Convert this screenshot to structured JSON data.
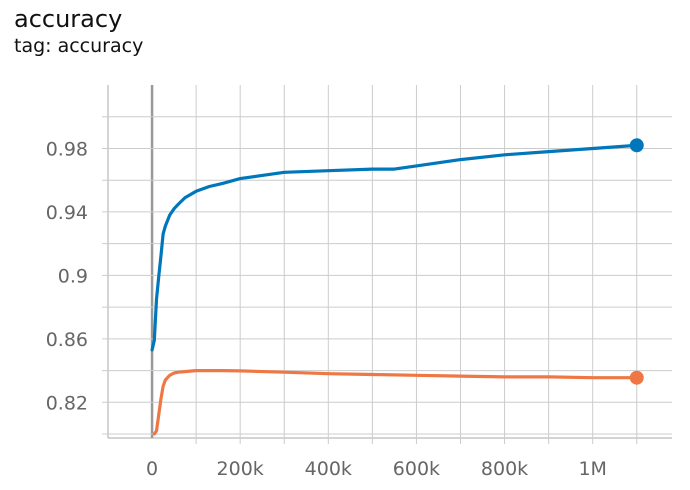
{
  "card": {
    "title": "accuracy",
    "tag": "tag: accuracy"
  },
  "chart_data": {
    "type": "line",
    "title": "accuracy",
    "subtitle": "tag: accuracy",
    "xlabel": "",
    "ylabel": "",
    "xlim": [
      -100000,
      1180000
    ],
    "ylim": [
      0.7975,
      1.02
    ],
    "x_ticks": [
      0,
      100000,
      200000,
      300000,
      400000,
      500000,
      600000,
      700000,
      800000,
      900000,
      1000000,
      1100000
    ],
    "x_tick_labels": [
      "0",
      "",
      "200k",
      "",
      "400k",
      "",
      "600k",
      "",
      "800k",
      "",
      "1M",
      ""
    ],
    "y_ticks": [
      0.8,
      0.82,
      0.84,
      0.86,
      0.88,
      0.9,
      0.92,
      0.94,
      0.96,
      0.98,
      1.0
    ],
    "y_tick_labels": [
      "",
      "0.82",
      "",
      "0.86",
      "",
      "0.9",
      "",
      "0.94",
      "",
      "0.98",
      ""
    ],
    "grid": true,
    "series": [
      {
        "color": "#0077bb",
        "x": [
          0,
          5000,
          10000,
          15000,
          20000,
          25000,
          30000,
          40000,
          50000,
          60000,
          75000,
          100000,
          130000,
          160000,
          200000,
          250000,
          300000,
          400000,
          500000,
          550000,
          600000,
          700000,
          800000,
          900000,
          1000000,
          1100000
        ],
        "y": [
          0.853,
          0.859,
          0.885,
          0.899,
          0.912,
          0.926,
          0.931,
          0.938,
          0.942,
          0.945,
          0.949,
          0.953,
          0.956,
          0.958,
          0.961,
          0.963,
          0.965,
          0.966,
          0.967,
          0.967,
          0.969,
          0.973,
          0.976,
          0.978,
          0.98,
          0.982
        ]
      },
      {
        "color": "#ee7744",
        "x": [
          5000,
          10000,
          15000,
          20000,
          25000,
          30000,
          40000,
          50000,
          60000,
          80000,
          100000,
          130000,
          160000,
          200000,
          300000,
          400000,
          500000,
          600000,
          700000,
          800000,
          900000,
          1000000,
          1100000
        ],
        "y": [
          0.8,
          0.802,
          0.812,
          0.822,
          0.83,
          0.834,
          0.837,
          0.8385,
          0.839,
          0.8395,
          0.84,
          0.84,
          0.84,
          0.8398,
          0.839,
          0.838,
          0.8375,
          0.837,
          0.8365,
          0.836,
          0.836,
          0.8355,
          0.8355
        ]
      }
    ]
  }
}
